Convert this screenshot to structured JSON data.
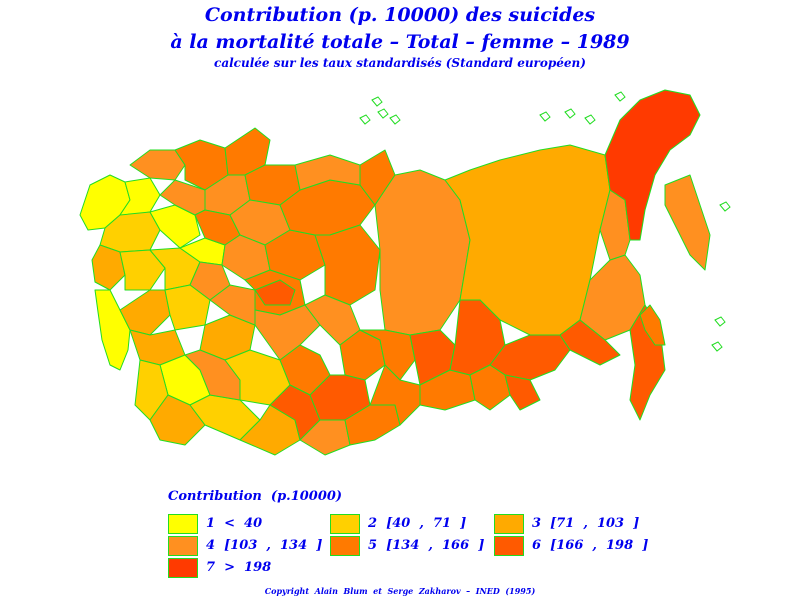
{
  "title_line1": "Contribution (p. 10000) des suicides",
  "title_line2": "à la mortalité totale – Total – femme – 1989",
  "subtitle": "calculée sur les taux standardisés (Standard européen)",
  "legend": {
    "title": "Contribution  (p.10000)",
    "items": [
      {
        "label": "1  <  40",
        "color": "#ffff00"
      },
      {
        "label": "2  [40  ,  71  ]",
        "color": "#ffd000"
      },
      {
        "label": "3  [71  ,  103  ]",
        "color": "#ffaa00"
      },
      {
        "label": "4  [103  ,  134  ]",
        "color": "#ff9020"
      },
      {
        "label": "5  [134  ,  166  ]",
        "color": "#ff7a00"
      },
      {
        "label": "6  [166  ,  198  ]",
        "color": "#ff5a00"
      },
      {
        "label": "7  >  198",
        "color": "#ff3a00"
      }
    ]
  },
  "copyright": "Copyright  Alain  Blum  et  Serge  Zakharov  –  INED  (1995)",
  "border_color": "#22dd22"
}
